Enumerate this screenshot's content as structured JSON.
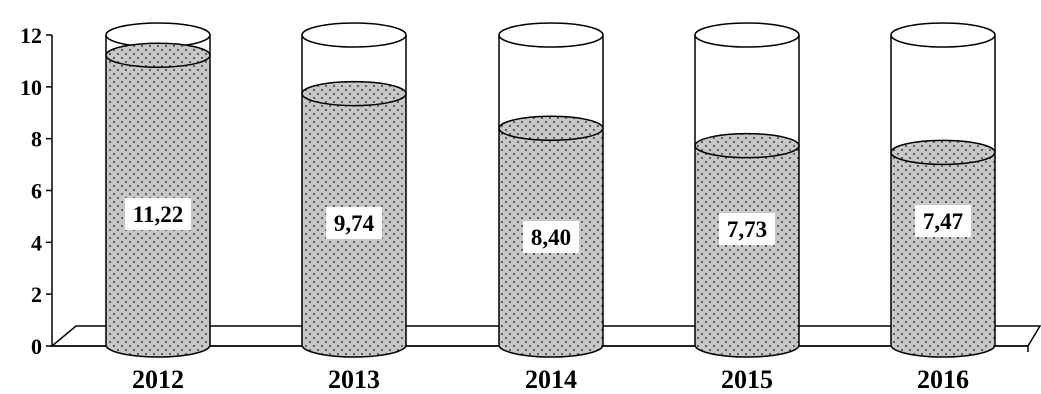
{
  "chart_data": {
    "type": "bar",
    "categories": [
      "2012",
      "2013",
      "2014",
      "2015",
      "2016"
    ],
    "values": [
      11.22,
      9.74,
      8.4,
      7.73,
      7.47
    ],
    "value_labels": [
      "11,22",
      "9,74",
      "8,40",
      "7,73",
      "7,47"
    ],
    "y_ticks": [
      "0",
      "2",
      "4",
      "6",
      "8",
      "10",
      "12"
    ],
    "ylim": [
      0,
      12
    ],
    "title": "",
    "xlabel": "",
    "ylabel": "",
    "grid": false,
    "legend": "none",
    "style": "cylinder-dotted",
    "colors": {
      "fill": "#c8c8c8",
      "dots": "#555555",
      "stroke": "#000000",
      "label_bg": "#ffffff"
    }
  }
}
